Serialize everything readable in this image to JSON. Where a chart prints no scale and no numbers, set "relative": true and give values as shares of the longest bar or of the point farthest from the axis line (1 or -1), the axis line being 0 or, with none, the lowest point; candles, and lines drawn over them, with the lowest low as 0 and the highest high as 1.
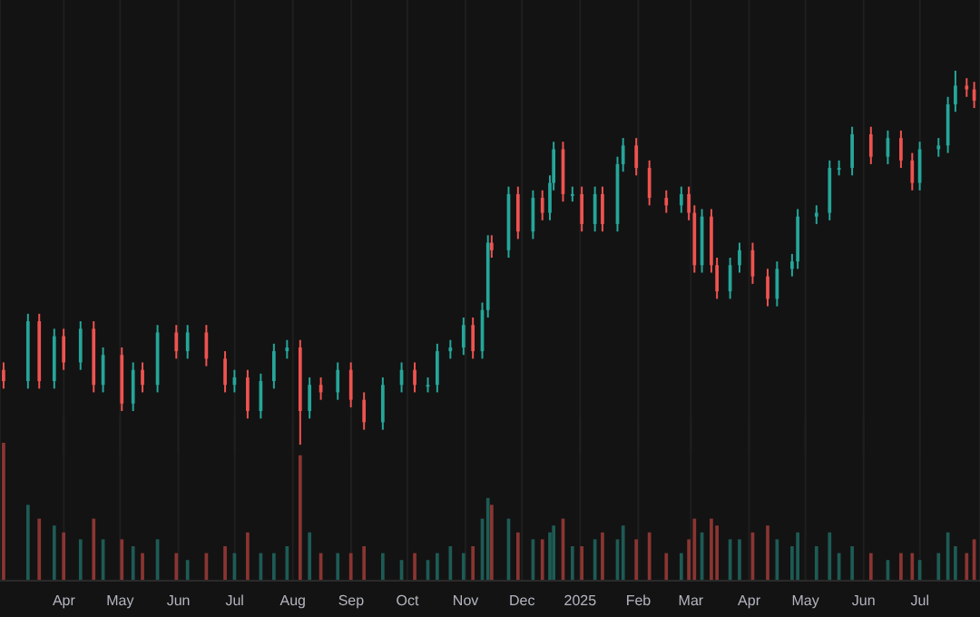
{
  "chart_data": [
    {
      "type": "candlestick",
      "relative": true,
      "grid": "x",
      "tick_labels": false,
      "x": [
        "2024-02-29",
        "2024-03-13",
        "2024-03-19",
        "2024-03-27",
        "2024-04-01",
        "2024-04-10",
        "2024-04-17",
        "2024-04-22",
        "2024-05-02",
        "2024-05-08",
        "2024-05-13",
        "2024-05-21",
        "2024-05-31",
        "2024-06-06",
        "2024-06-16",
        "2024-06-26",
        "2024-07-01",
        "2024-07-08",
        "2024-07-15",
        "2024-07-22",
        "2024-07-29",
        "2024-08-05",
        "2024-08-10",
        "2024-08-16",
        "2024-08-25",
        "2024-09-01",
        "2024-09-08",
        "2024-09-18",
        "2024-09-28",
        "2024-10-05",
        "2024-10-12",
        "2024-10-17",
        "2024-10-24",
        "2024-10-31",
        "2024-11-05",
        "2024-11-10",
        "2024-11-13",
        "2024-11-15",
        "2024-11-24",
        "2024-11-29",
        "2024-12-07",
        "2024-12-12",
        "2024-12-16",
        "2024-12-18",
        "2024-12-23",
        "2024-12-28",
        "2025-01-02",
        "2025-01-09",
        "2025-01-13",
        "2025-01-21",
        "2025-01-24",
        "2025-01-31",
        "2025-02-07",
        "2025-02-16",
        "2025-02-24",
        "2025-02-28",
        "2025-03-03",
        "2025-03-07",
        "2025-03-12",
        "2025-03-15",
        "2025-03-22",
        "2025-03-27",
        "2025-04-03",
        "2025-04-11",
        "2025-04-16",
        "2025-04-24",
        "2025-04-27",
        "2025-05-07",
        "2025-05-14",
        "2025-05-19",
        "2025-05-26",
        "2025-06-05",
        "2025-06-14",
        "2025-06-21",
        "2025-06-27",
        "2025-07-01",
        "2025-07-11",
        "2025-07-16",
        "2025-07-20",
        "2025-07-26",
        "2025-07-30"
      ],
      "xlim": [
        "2024-02-27",
        "2025-08-02"
      ],
      "xticks": [
        {
          "value": "2024-04-01",
          "label": null
        },
        {
          "value": "2024-05-01",
          "label": null
        },
        {
          "value": "2024-06-01",
          "label": null
        },
        {
          "value": "2024-07-01",
          "label": null
        },
        {
          "value": "2024-08-01",
          "label": null
        },
        {
          "value": "2024-09-01",
          "label": null
        },
        {
          "value": "2024-10-01",
          "label": null
        },
        {
          "value": "2024-11-01",
          "label": null
        },
        {
          "value": "2024-12-01",
          "label": null
        },
        {
          "value": "2025-01-01",
          "label": null
        },
        {
          "value": "2025-02-01",
          "label": null
        },
        {
          "value": "2025-03-01",
          "label": null
        },
        {
          "value": "2025-04-01",
          "label": null
        },
        {
          "value": "2025-05-01",
          "label": null
        },
        {
          "value": "2025-06-01",
          "label": null
        },
        {
          "value": "2025-07-01",
          "label": null
        }
      ],
      "ohlc": [
        [
          0.2,
          0.22,
          0.15,
          0.17
        ],
        [
          0.17,
          0.35,
          0.15,
          0.33
        ],
        [
          0.33,
          0.35,
          0.15,
          0.17
        ],
        [
          0.17,
          0.31,
          0.15,
          0.29
        ],
        [
          0.29,
          0.31,
          0.2,
          0.22
        ],
        [
          0.22,
          0.33,
          0.2,
          0.31
        ],
        [
          0.31,
          0.33,
          0.14,
          0.16
        ],
        [
          0.16,
          0.26,
          0.14,
          0.24
        ],
        [
          0.24,
          0.26,
          0.09,
          0.11
        ],
        [
          0.11,
          0.22,
          0.09,
          0.2
        ],
        [
          0.2,
          0.22,
          0.14,
          0.16
        ],
        [
          0.16,
          0.32,
          0.14,
          0.3
        ],
        [
          0.3,
          0.32,
          0.23,
          0.25
        ],
        [
          0.25,
          0.32,
          0.23,
          0.3
        ],
        [
          0.3,
          0.32,
          0.21,
          0.23
        ],
        [
          0.23,
          0.25,
          0.14,
          0.16
        ],
        [
          0.16,
          0.2,
          0.14,
          0.18
        ],
        [
          0.18,
          0.2,
          0.07,
          0.09
        ],
        [
          0.09,
          0.19,
          0.07,
          0.17
        ],
        [
          0.17,
          0.27,
          0.15,
          0.25
        ],
        [
          0.25,
          0.28,
          0.23,
          0.26
        ],
        [
          0.26,
          0.28,
          0,
          0.09
        ],
        [
          0.09,
          0.18,
          0.07,
          0.16
        ],
        [
          0.16,
          0.18,
          0.12,
          0.14
        ],
        [
          0.14,
          0.22,
          0.12,
          0.2
        ],
        [
          0.2,
          0.22,
          0.1,
          0.12
        ],
        [
          0.12,
          0.14,
          0.04,
          0.06
        ],
        [
          0.06,
          0.18,
          0.04,
          0.16
        ],
        [
          0.16,
          0.22,
          0.14,
          0.2
        ],
        [
          0.2,
          0.22,
          0.14,
          0.16
        ],
        [
          0.16,
          0.18,
          0.14,
          0.16
        ],
        [
          0.16,
          0.27,
          0.14,
          0.25
        ],
        [
          0.25,
          0.28,
          0.23,
          0.26
        ],
        [
          0.26,
          0.34,
          0.24,
          0.32
        ],
        [
          0.32,
          0.34,
          0.23,
          0.25
        ],
        [
          0.25,
          0.38,
          0.23,
          0.36
        ],
        [
          0.36,
          0.56,
          0.34,
          0.54
        ],
        [
          0.54,
          0.56,
          0.5,
          0.52
        ],
        [
          0.52,
          0.69,
          0.5,
          0.67
        ],
        [
          0.67,
          0.69,
          0.55,
          0.57
        ],
        [
          0.57,
          0.68,
          0.55,
          0.66
        ],
        [
          0.66,
          0.68,
          0.6,
          0.62
        ],
        [
          0.62,
          0.72,
          0.6,
          0.7
        ],
        [
          0.7,
          0.81,
          0.68,
          0.79
        ],
        [
          0.79,
          0.81,
          0.65,
          0.67
        ],
        [
          0.67,
          0.69,
          0.65,
          0.67
        ],
        [
          0.67,
          0.69,
          0.57,
          0.59
        ],
        [
          0.59,
          0.69,
          0.57,
          0.67
        ],
        [
          0.67,
          0.69,
          0.57,
          0.59
        ],
        [
          0.59,
          0.77,
          0.57,
          0.75
        ],
        [
          0.75,
          0.82,
          0.73,
          0.8
        ],
        [
          0.8,
          0.82,
          0.72,
          0.74
        ],
        [
          0.74,
          0.76,
          0.64,
          0.66
        ],
        [
          0.66,
          0.68,
          0.62,
          0.64
        ],
        [
          0.64,
          0.69,
          0.62,
          0.67
        ],
        [
          0.67,
          0.69,
          0.6,
          0.62
        ],
        [
          0.62,
          0.64,
          0.46,
          0.48
        ],
        [
          0.48,
          0.63,
          0.46,
          0.61
        ],
        [
          0.61,
          0.63,
          0.46,
          0.48
        ],
        [
          0.48,
          0.5,
          0.39,
          0.41
        ],
        [
          0.41,
          0.5,
          0.39,
          0.48
        ],
        [
          0.48,
          0.54,
          0.46,
          0.52
        ],
        [
          0.52,
          0.54,
          0.43,
          0.45
        ],
        [
          0.45,
          0.47,
          0.37,
          0.39
        ],
        [
          0.39,
          0.49,
          0.37,
          0.47
        ],
        [
          0.47,
          0.51,
          0.45,
          0.49
        ],
        [
          0.49,
          0.63,
          0.47,
          0.61
        ],
        [
          0.61,
          0.64,
          0.59,
          0.62
        ],
        [
          0.62,
          0.76,
          0.6,
          0.74
        ],
        [
          0.74,
          0.76,
          0.72,
          0.74
        ],
        [
          0.74,
          0.85,
          0.72,
          0.83
        ],
        [
          0.83,
          0.85,
          0.75,
          0.77
        ],
        [
          0.77,
          0.84,
          0.75,
          0.82
        ],
        [
          0.82,
          0.84,
          0.74,
          0.76
        ],
        [
          0.76,
          0.78,
          0.68,
          0.7
        ],
        [
          0.7,
          0.81,
          0.68,
          0.79
        ],
        [
          0.79,
          0.82,
          0.77,
          0.8
        ],
        [
          0.8,
          0.93,
          0.78,
          0.91
        ],
        [
          0.91,
          1,
          0.89,
          0.96
        ],
        [
          0.96,
          0.98,
          0.93,
          0.95
        ],
        [
          0.95,
          0.97,
          0.9,
          0.92
        ]
      ],
      "colors": [
        "#ef5350",
        "#26a69a",
        "#ef5350",
        "#26a69a",
        "#ef5350",
        "#26a69a",
        "#ef5350",
        "#26a69a",
        "#ef5350",
        "#26a69a",
        "#ef5350",
        "#26a69a",
        "#ef5350",
        "#26a69a",
        "#ef5350",
        "#ef5350",
        "#26a69a",
        "#ef5350",
        "#26a69a",
        "#26a69a",
        "#26a69a",
        "#ef5350",
        "#26a69a",
        "#ef5350",
        "#26a69a",
        "#ef5350",
        "#ef5350",
        "#26a69a",
        "#26a69a",
        "#ef5350",
        "#26a69a",
        "#26a69a",
        "#26a69a",
        "#26a69a",
        "#ef5350",
        "#26a69a",
        "#26a69a",
        "#ef5350",
        "#26a69a",
        "#ef5350",
        "#26a69a",
        "#ef5350",
        "#26a69a",
        "#26a69a",
        "#ef5350",
        "#26a69a",
        "#ef5350",
        "#26a69a",
        "#ef5350",
        "#26a69a",
        "#26a69a",
        "#ef5350",
        "#ef5350",
        "#ef5350",
        "#26a69a",
        "#ef5350",
        "#ef5350",
        "#26a69a",
        "#ef5350",
        "#ef5350",
        "#26a69a",
        "#26a69a",
        "#ef5350",
        "#ef5350",
        "#26a69a",
        "#26a69a",
        "#26a69a",
        "#26a69a",
        "#26a69a",
        "#26a69a",
        "#26a69a",
        "#ef5350",
        "#26a69a",
        "#ef5350",
        "#ef5350",
        "#26a69a",
        "#26a69a",
        "#26a69a",
        "#26a69a",
        "#ef5350",
        "#ef5350"
      ]
    },
    {
      "type": "bar",
      "relative": true,
      "grid": "x",
      "x": [
        "2024-02-29",
        "2024-03-13",
        "2024-03-19",
        "2024-03-27",
        "2024-04-01",
        "2024-04-10",
        "2024-04-17",
        "2024-04-22",
        "2024-05-02",
        "2024-05-08",
        "2024-05-13",
        "2024-05-21",
        "2024-05-31",
        "2024-06-06",
        "2024-06-16",
        "2024-06-26",
        "2024-07-01",
        "2024-07-08",
        "2024-07-15",
        "2024-07-22",
        "2024-07-29",
        "2024-08-05",
        "2024-08-10",
        "2024-08-16",
        "2024-08-25",
        "2024-09-01",
        "2024-09-08",
        "2024-09-18",
        "2024-09-28",
        "2024-10-05",
        "2024-10-12",
        "2024-10-17",
        "2024-10-24",
        "2024-10-31",
        "2024-11-05",
        "2024-11-10",
        "2024-11-13",
        "2024-11-15",
        "2024-11-24",
        "2024-11-29",
        "2024-12-07",
        "2024-12-12",
        "2024-12-16",
        "2024-12-18",
        "2024-12-23",
        "2024-12-28",
        "2025-01-02",
        "2025-01-09",
        "2025-01-13",
        "2025-01-21",
        "2025-01-24",
        "2025-01-31",
        "2025-02-07",
        "2025-02-16",
        "2025-02-24",
        "2025-02-28",
        "2025-03-03",
        "2025-03-07",
        "2025-03-12",
        "2025-03-15",
        "2025-03-22",
        "2025-03-27",
        "2025-04-03",
        "2025-04-11",
        "2025-04-16",
        "2025-04-24",
        "2025-04-27",
        "2025-05-07",
        "2025-05-14",
        "2025-05-19",
        "2025-05-26",
        "2025-06-05",
        "2025-06-14",
        "2025-06-21",
        "2025-06-27",
        "2025-07-01",
        "2025-07-11",
        "2025-07-16",
        "2025-07-20",
        "2025-07-26",
        "2025-07-30"
      ],
      "xlim": [
        "2024-02-27",
        "2025-08-02"
      ],
      "xticks": [
        {
          "value": "2024-04-01",
          "label": "Apr"
        },
        {
          "value": "2024-05-01",
          "label": "May"
        },
        {
          "value": "2024-06-01",
          "label": "Jun"
        },
        {
          "value": "2024-07-01",
          "label": "Jul"
        },
        {
          "value": "2024-08-01",
          "label": "Aug"
        },
        {
          "value": "2024-09-01",
          "label": "Sep"
        },
        {
          "value": "2024-10-01",
          "label": "Oct"
        },
        {
          "value": "2024-11-01",
          "label": "Nov"
        },
        {
          "value": "2024-12-01",
          "label": "Dec"
        },
        {
          "value": "2025-01-01",
          "label": "2025"
        },
        {
          "value": "2025-02-01",
          "label": "Feb"
        },
        {
          "value": "2025-03-01",
          "label": "Mar"
        },
        {
          "value": "2025-04-01",
          "label": "Apr"
        },
        {
          "value": "2025-05-01",
          "label": "May"
        },
        {
          "value": "2025-06-01",
          "label": "Jun"
        },
        {
          "value": "2025-07-01",
          "label": "Jul"
        }
      ],
      "values": [
        1,
        0.55,
        0.45,
        0.4,
        0.35,
        0.3,
        0.45,
        0.3,
        0.3,
        0.25,
        0.2,
        0.3,
        0.2,
        0.15,
        0.2,
        0.25,
        0.2,
        0.35,
        0.2,
        0.2,
        0.25,
        0.91,
        0.35,
        0.2,
        0.2,
        0.2,
        0.25,
        0.2,
        0.15,
        0.2,
        0.15,
        0.2,
        0.25,
        0.2,
        0.25,
        0.45,
        0.6,
        0.55,
        0.45,
        0.35,
        0.3,
        0.3,
        0.35,
        0.4,
        0.45,
        0.25,
        0.25,
        0.3,
        0.35,
        0.3,
        0.4,
        0.3,
        0.35,
        0.2,
        0.2,
        0.3,
        0.45,
        0.35,
        0.45,
        0.4,
        0.3,
        0.3,
        0.35,
        0.4,
        0.3,
        0.25,
        0.35,
        0.25,
        0.35,
        0.2,
        0.25,
        0.2,
        0.15,
        0.2,
        0.2,
        0.15,
        0.2,
        0.35,
        0.25,
        0.2,
        0.3
      ],
      "colors": [
        "#8a3532",
        "#1e5b55",
        "#8a3532",
        "#1e5b55",
        "#8a3532",
        "#1e5b55",
        "#8a3532",
        "#1e5b55",
        "#8a3532",
        "#1e5b55",
        "#8a3532",
        "#1e5b55",
        "#8a3532",
        "#1e5b55",
        "#8a3532",
        "#8a3532",
        "#1e5b55",
        "#8a3532",
        "#1e5b55",
        "#1e5b55",
        "#1e5b55",
        "#8a3532",
        "#1e5b55",
        "#8a3532",
        "#1e5b55",
        "#8a3532",
        "#8a3532",
        "#1e5b55",
        "#1e5b55",
        "#8a3532",
        "#1e5b55",
        "#1e5b55",
        "#1e5b55",
        "#1e5b55",
        "#8a3532",
        "#1e5b55",
        "#1e5b55",
        "#8a3532",
        "#1e5b55",
        "#8a3532",
        "#1e5b55",
        "#8a3532",
        "#1e5b55",
        "#1e5b55",
        "#8a3532",
        "#1e5b55",
        "#8a3532",
        "#1e5b55",
        "#8a3532",
        "#1e5b55",
        "#1e5b55",
        "#8a3532",
        "#8a3532",
        "#8a3532",
        "#1e5b55",
        "#8a3532",
        "#8a3532",
        "#1e5b55",
        "#8a3532",
        "#8a3532",
        "#1e5b55",
        "#1e5b55",
        "#8a3532",
        "#8a3532",
        "#1e5b55",
        "#1e5b55",
        "#1e5b55",
        "#1e5b55",
        "#1e5b55",
        "#1e5b55",
        "#1e5b55",
        "#8a3532",
        "#1e5b55",
        "#8a3532",
        "#8a3532",
        "#1e5b55",
        "#1e5b55",
        "#1e5b55",
        "#1e5b55",
        "#8a3532",
        "#8a3532"
      ]
    }
  ]
}
